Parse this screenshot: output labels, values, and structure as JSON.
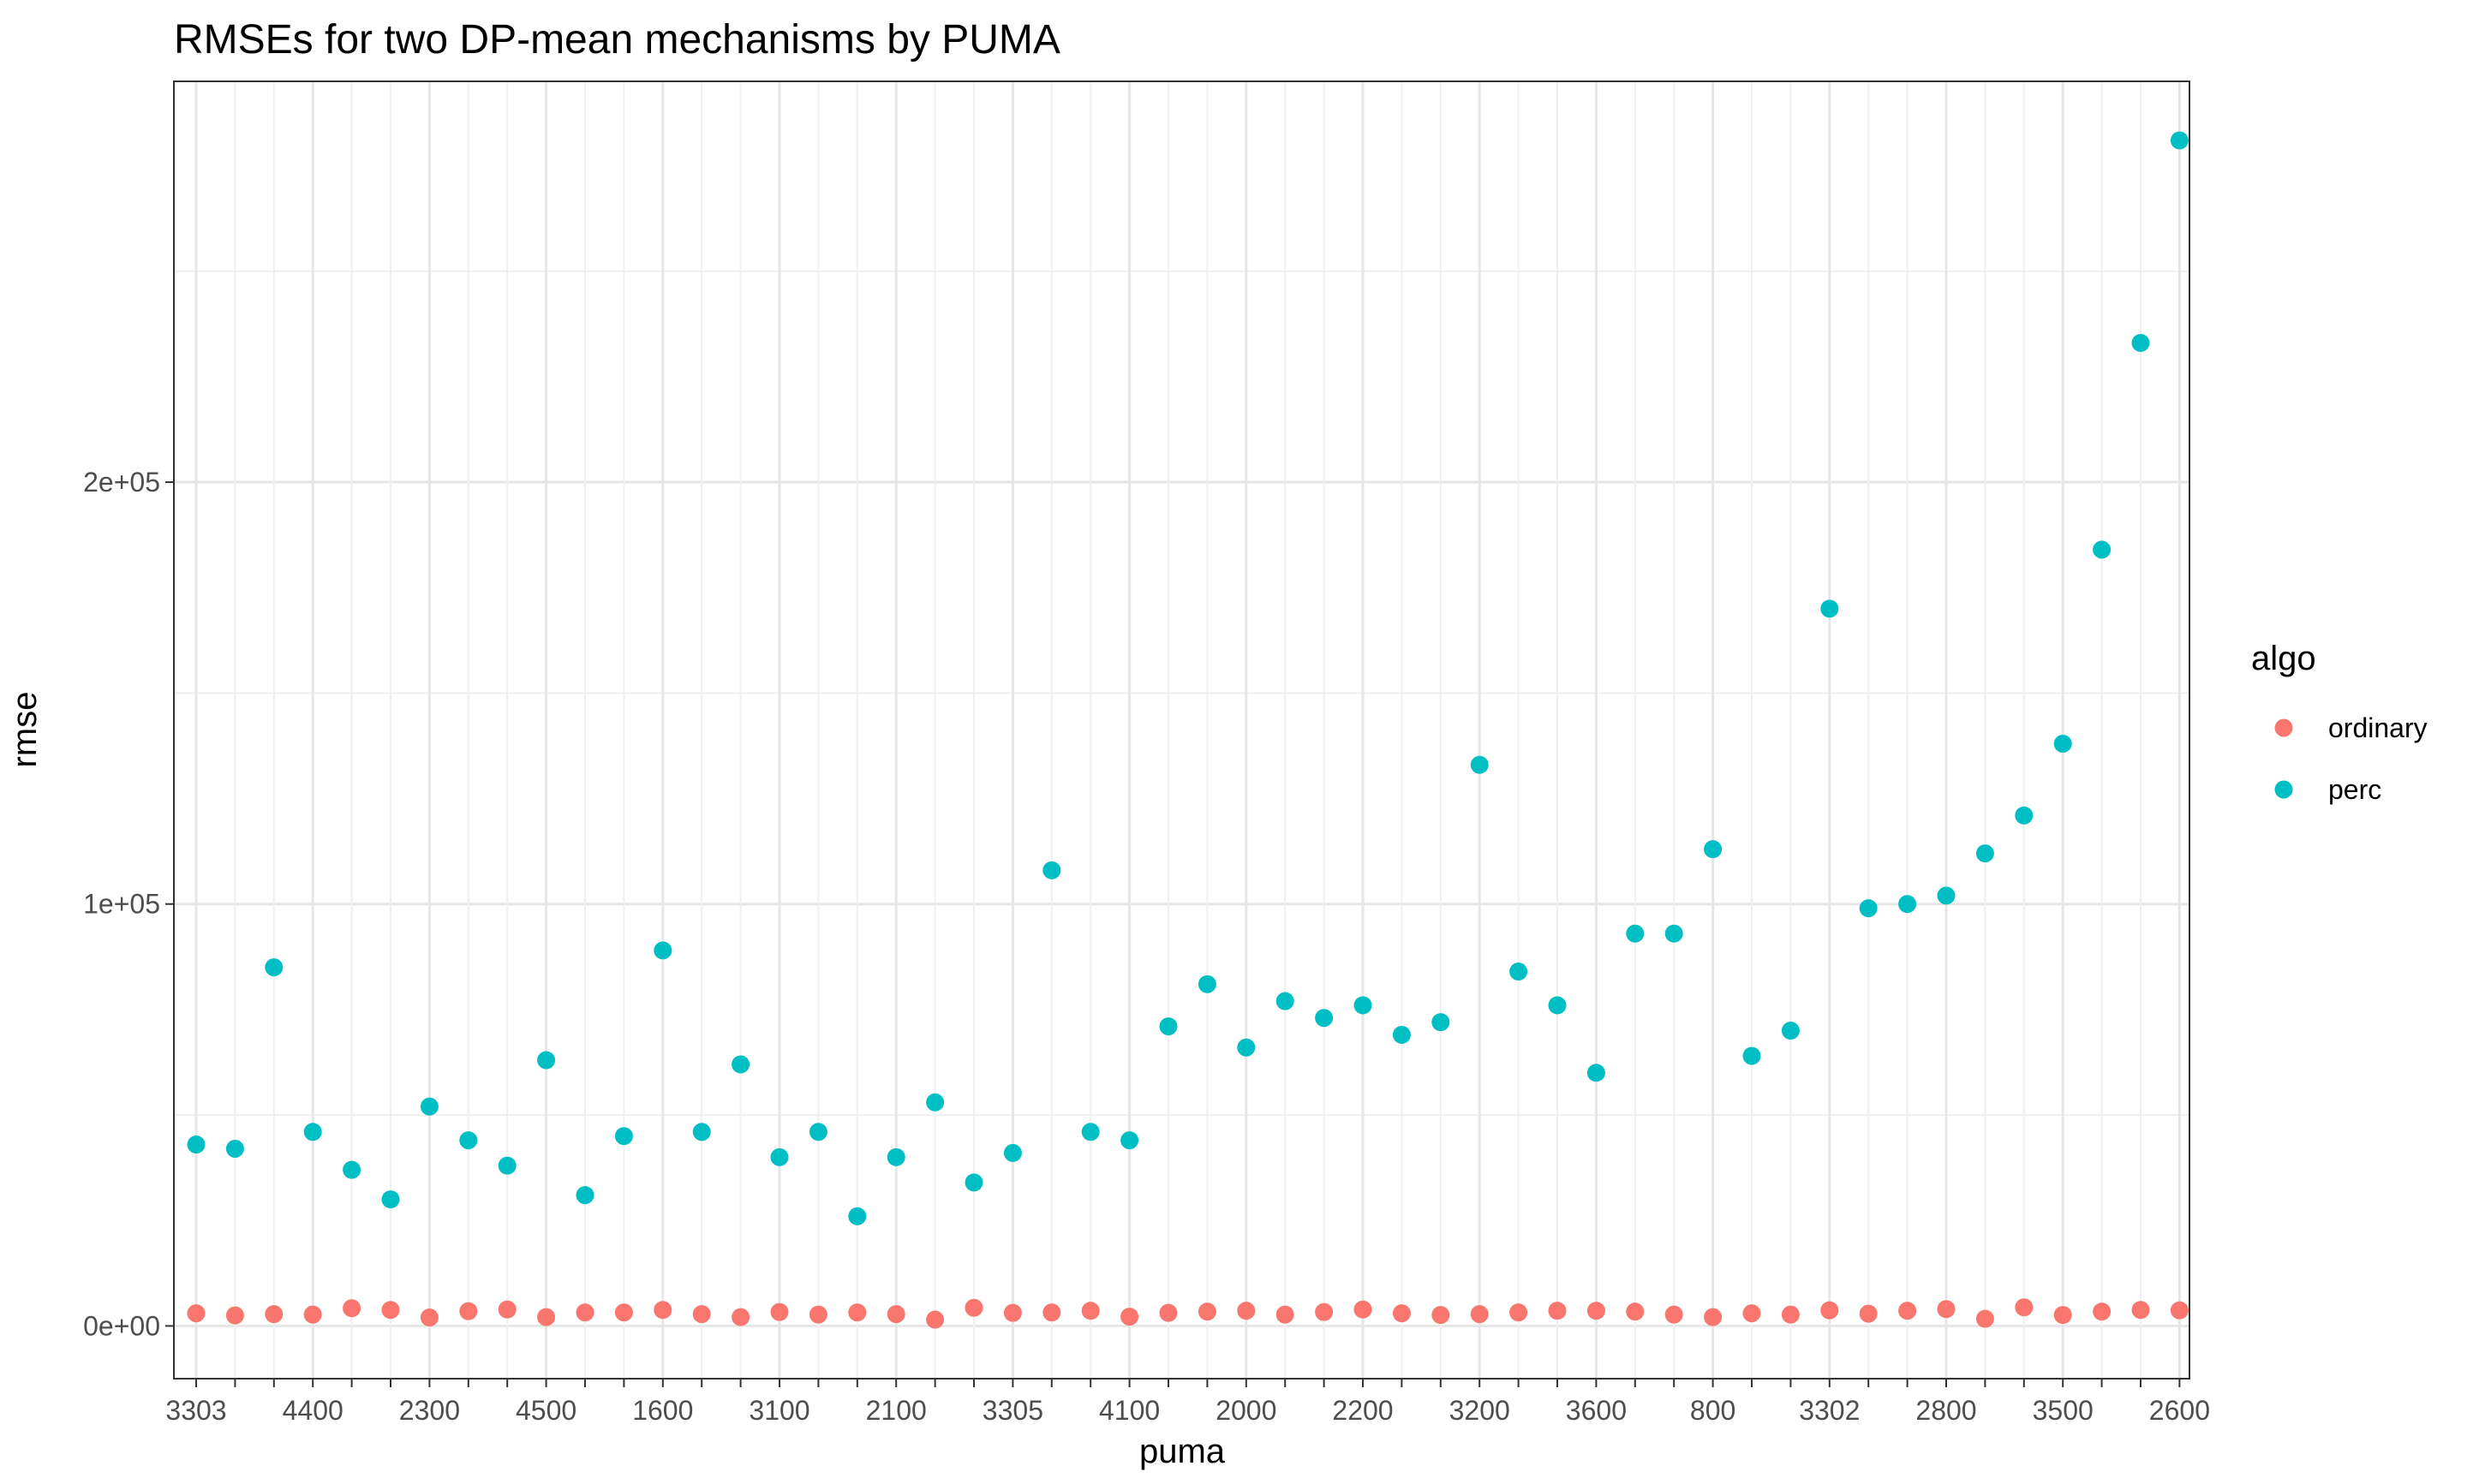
{
  "chart_data": {
    "type": "scatter",
    "title": "RMSEs for two DP-mean mechanisms by PUMA",
    "xlabel": "puma",
    "ylabel": "rmse",
    "x_tick_labels": [
      "3303",
      "4400",
      "2300",
      "4500",
      "1600",
      "3100",
      "2100",
      "3305",
      "4100",
      "2000",
      "2200",
      "3200",
      "3600",
      "800",
      "3302",
      "2800",
      "3500",
      "2600"
    ],
    "x_tick_every": 3,
    "n_categories": 52,
    "yticks": [
      0,
      100000,
      200000
    ],
    "ytick_labels": [
      "0e+00",
      "1e+05",
      "2e+05"
    ],
    "ylim": [
      -12500,
      295000
    ],
    "grid": true,
    "legend_title": "algo",
    "legend_position": "right",
    "series": [
      {
        "name": "ordinary",
        "color": "#F8766D",
        "values": [
          3000,
          2500,
          2800,
          2700,
          4200,
          3800,
          2000,
          3500,
          3900,
          2100,
          3200,
          3200,
          3800,
          2800,
          2100,
          3300,
          2700,
          3200,
          2800,
          1500,
          4300,
          3100,
          3200,
          3600,
          2200,
          3100,
          3400,
          3600,
          2700,
          3300,
          3900,
          3000,
          2600,
          2800,
          3200,
          3600,
          3600,
          3400,
          2700,
          2100,
          3000,
          2700,
          3700,
          2900,
          3600,
          4000,
          1700,
          4400,
          2600,
          3400,
          3800,
          3700
        ]
      },
      {
        "name": "perc",
        "color": "#00BFC4",
        "values": [
          43000,
          42000,
          85000,
          46000,
          37000,
          30000,
          52000,
          44000,
          38000,
          63000,
          31000,
          45000,
          89000,
          46000,
          62000,
          40000,
          46000,
          26000,
          40000,
          53000,
          34000,
          41000,
          108000,
          46000,
          44000,
          71000,
          81000,
          66000,
          77000,
          73000,
          76000,
          69000,
          72000,
          133000,
          84000,
          76000,
          60000,
          93000,
          93000,
          113000,
          64000,
          70000,
          170000,
          99000,
          100000,
          102000,
          112000,
          121000,
          138000,
          184000,
          233000,
          281000
        ]
      }
    ]
  }
}
